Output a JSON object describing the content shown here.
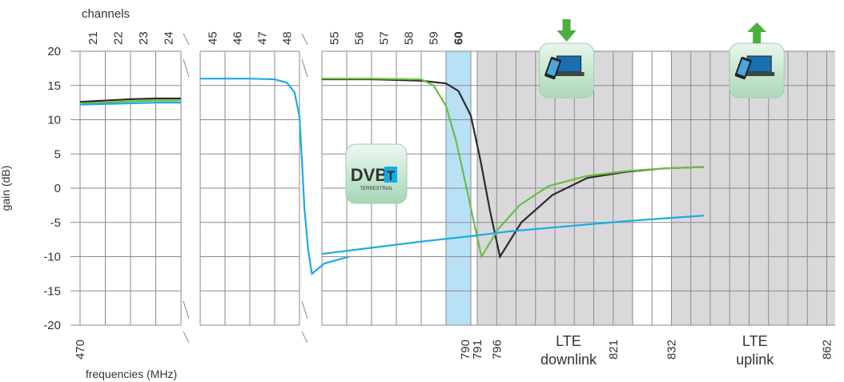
{
  "chart_data": {
    "type": "line",
    "ylabel": "gain (dB)",
    "xlabel": "frequencies (MHz)",
    "top_axis_label": "channels",
    "ylim": [
      -20,
      20
    ],
    "yticks": [
      "20",
      "15",
      "10",
      "5",
      "0",
      "-5",
      "-10",
      "-15",
      "-20"
    ],
    "grid": true,
    "segments": [
      {
        "channels": [
          "21",
          "22",
          "23",
          "24"
        ],
        "start_freq": "470"
      },
      {
        "channels": [
          "45",
          "46",
          "47",
          "48"
        ]
      },
      {
        "channels": [
          "55",
          "56",
          "57",
          "58",
          "59",
          "60"
        ],
        "highlighted_channel": "60",
        "end_freq": "790"
      }
    ],
    "lte_frequencies": [
      "791",
      "796",
      "821",
      "832",
      "862"
    ],
    "lte_bands": [
      {
        "line1": "LTE",
        "line2": "downlink",
        "icon": "download-arrow-tablet-icon"
      },
      {
        "line1": "LTE",
        "line2": "uplink",
        "icon": "upload-arrow-tablet-icon"
      }
    ],
    "dvb_logo": {
      "main": "DVB",
      "letter": "T",
      "sub": "TERRESTRIAL"
    },
    "series": [
      {
        "color": "#2b2b2b",
        "segment1": [
          [
            0,
            12.6
          ],
          [
            1,
            12.8
          ],
          [
            2,
            13.0
          ],
          [
            3,
            13.1
          ],
          [
            4,
            13.1
          ]
        ],
        "segment3_lte": [
          [
            0,
            15.9
          ],
          [
            2,
            15.9
          ],
          [
            4,
            15.7
          ],
          [
            5,
            15.3
          ],
          [
            5.5,
            14.2
          ],
          [
            6,
            10.6
          ],
          [
            6.5,
            4.0
          ],
          [
            7,
            -3.5
          ],
          [
            7.5,
            -10.0
          ],
          [
            8.6,
            -5.0
          ],
          [
            10.2,
            -1.0
          ],
          [
            12,
            1.5
          ],
          [
            14,
            2.4
          ],
          [
            16,
            2.9
          ],
          [
            18,
            3.1
          ]
        ]
      },
      {
        "color": "#6cbd45",
        "segment1": [
          [
            0,
            12.4
          ],
          [
            1,
            12.5
          ],
          [
            2,
            12.7
          ],
          [
            3,
            12.8
          ],
          [
            4,
            12.8
          ]
        ],
        "segment3_lte": [
          [
            0,
            16.0
          ],
          [
            2,
            16.0
          ],
          [
            4,
            15.9
          ],
          [
            4.5,
            15.0
          ],
          [
            5,
            12.0
          ],
          [
            5.4,
            7.0
          ],
          [
            5.8,
            0.5
          ],
          [
            6.2,
            -5.5
          ],
          [
            6.55,
            -10.0
          ],
          [
            7.4,
            -6.0
          ],
          [
            8.5,
            -2.5
          ],
          [
            10,
            0.3
          ],
          [
            12,
            1.8
          ],
          [
            14,
            2.5
          ],
          [
            16,
            2.9
          ],
          [
            18,
            3.1
          ]
        ]
      },
      {
        "color": "#1aabe4",
        "segment1": [
          [
            0,
            12.2
          ],
          [
            1,
            12.3
          ],
          [
            2,
            12.4
          ],
          [
            3,
            12.5
          ],
          [
            4,
            12.5
          ]
        ],
        "segment2": [
          [
            0,
            16.0
          ],
          [
            2,
            16.0
          ],
          [
            3,
            15.9
          ],
          [
            3.5,
            15.4
          ],
          [
            3.8,
            14.0
          ],
          [
            4.0,
            10.5
          ],
          [
            4.1,
            4.0
          ],
          [
            4.2,
            -3.0
          ],
          [
            4.35,
            -9.0
          ],
          [
            4.5,
            -12.5
          ],
          [
            5,
            -11.0
          ],
          [
            6,
            -10.0
          ]
        ],
        "segment3_lte": [
          [
            0,
            -9.6
          ],
          [
            2,
            -8.7
          ],
          [
            4,
            -7.8
          ],
          [
            6,
            -7.0
          ],
          [
            8,
            -6.3
          ],
          [
            10,
            -5.8
          ],
          [
            12,
            -5.3
          ],
          [
            14,
            -4.8
          ],
          [
            16,
            -4.4
          ],
          [
            18,
            -4.0
          ]
        ]
      }
    ]
  }
}
